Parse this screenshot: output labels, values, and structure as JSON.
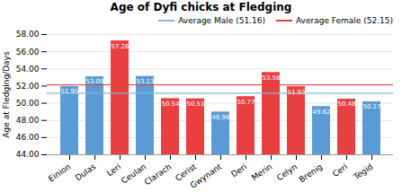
{
  "chart_data": {
    "type": "bar",
    "title": "Age of Dyfi chicks at Fledging",
    "ylabel": "Age at Fledging/Days",
    "categories": [
      "Einion",
      "Dulas",
      "Leri",
      "Ceulan",
      "Clarach",
      "Cerist",
      "Gwynant",
      "Deri",
      "Merin",
      "Celyn",
      "Brenig",
      "Ceri",
      "Tegid"
    ],
    "values": [
      51.95,
      53.09,
      57.26,
      53.13,
      50.54,
      50.51,
      48.98,
      50.77,
      53.58,
      51.93,
      49.62,
      50.48,
      50.17
    ],
    "colors": [
      "#5b9bd5",
      "#5b9bd5",
      "#e84040",
      "#5b9bd5",
      "#e84040",
      "#e84040",
      "#5b9bd5",
      "#e84040",
      "#e84040",
      "#e84040",
      "#5b9bd5",
      "#e84040",
      "#5b9bd5"
    ],
    "reference_lines": [
      {
        "name": "Average Male (51.16)",
        "value": 51.16,
        "color": "#8ab4d8"
      },
      {
        "name": "Average Female (52.15)",
        "value": 52.15,
        "color": "#e84040"
      }
    ],
    "ylim": [
      44.0,
      58.0
    ],
    "yticks": [
      {
        "value": 44,
        "label": "44.00"
      },
      {
        "value": 46,
        "label": "46.00"
      },
      {
        "value": 48,
        "label": "48.00"
      },
      {
        "value": 50,
        "label": "50.00"
      },
      {
        "value": 52,
        "label": "52.00"
      },
      {
        "value": 54,
        "label": "54.00"
      },
      {
        "value": 56,
        "label": "56.00"
      },
      {
        "value": 58,
        "label": "58.00"
      }
    ],
    "grid": true,
    "legend": "upper right",
    "data_labels": true
  }
}
